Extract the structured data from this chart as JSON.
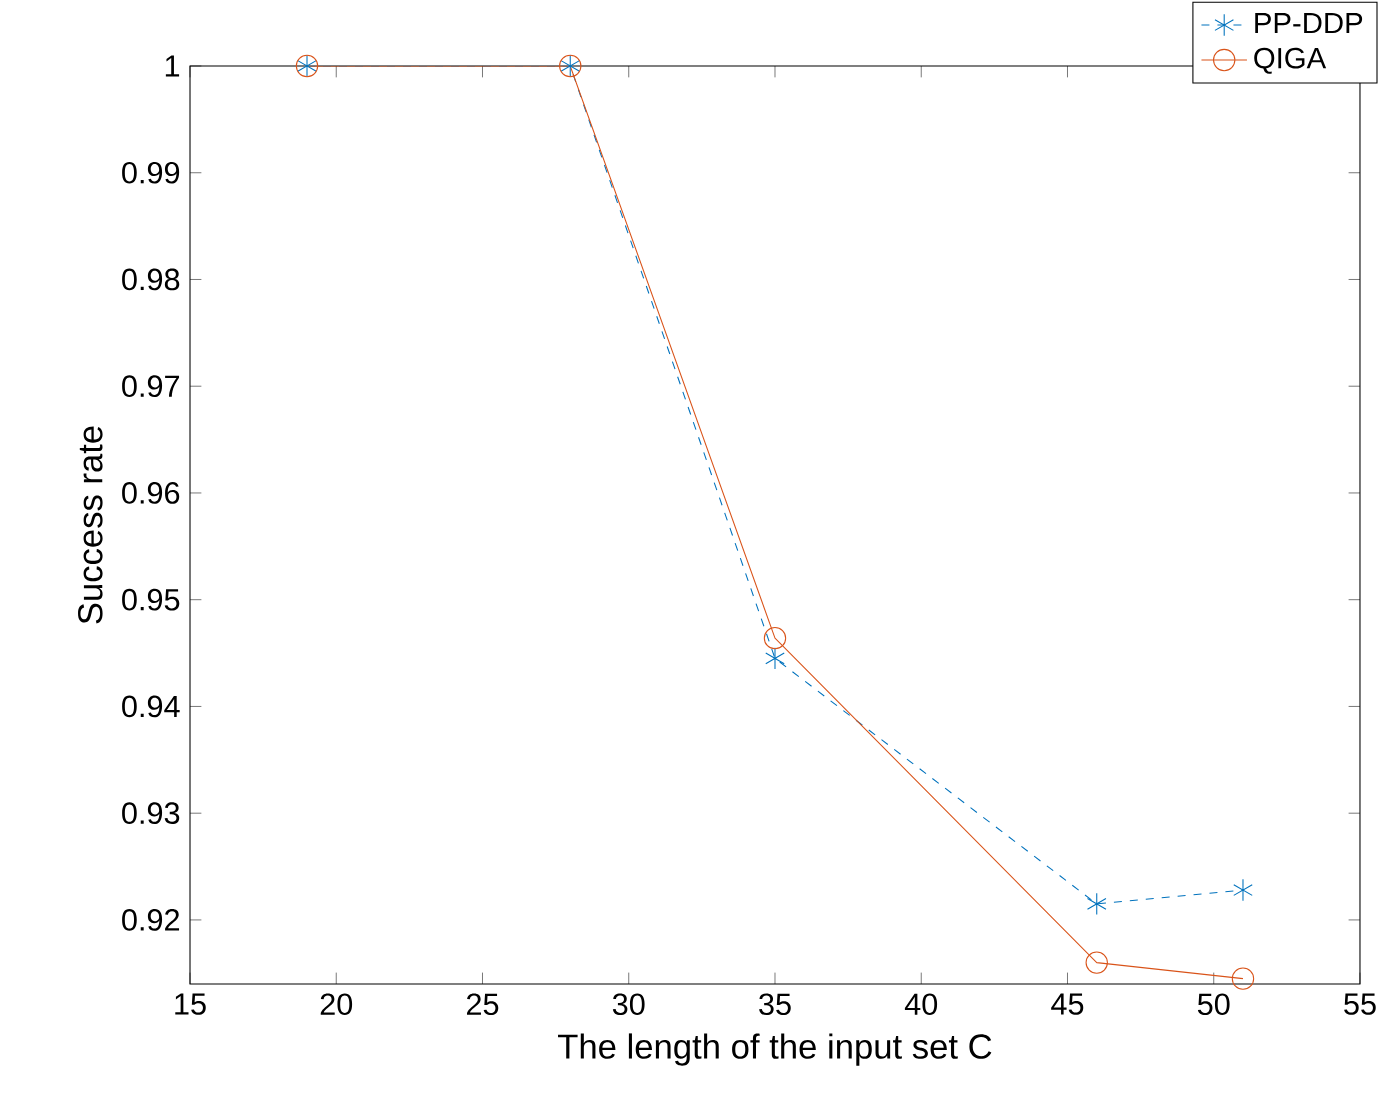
{
  "chart_data": {
    "type": "line",
    "xlabel": "The length of the input set C",
    "ylabel": "Success rate",
    "x": [
      19,
      28,
      35,
      46,
      51
    ],
    "series": [
      {
        "name": "PP-DDP",
        "color": "#0072bd",
        "marker": "cross",
        "line_style": "dashed",
        "values": [
          1,
          1,
          0.9445,
          0.9215,
          0.9228
        ]
      },
      {
        "name": "QIGA",
        "color": "#d95319",
        "marker": "circle",
        "line_style": "solid",
        "values": [
          1,
          1,
          0.9464,
          0.916,
          0.9145
        ]
      }
    ],
    "xlim": [
      15,
      55
    ],
    "ylim": [
      0.914,
      1
    ],
    "xticks": [
      15,
      20,
      25,
      30,
      35,
      40,
      45,
      50,
      55
    ],
    "yticks": [
      0.92,
      0.93,
      0.94,
      0.95,
      0.96,
      0.97,
      0.98,
      0.99,
      1
    ],
    "grid": false,
    "legend": "top right"
  }
}
